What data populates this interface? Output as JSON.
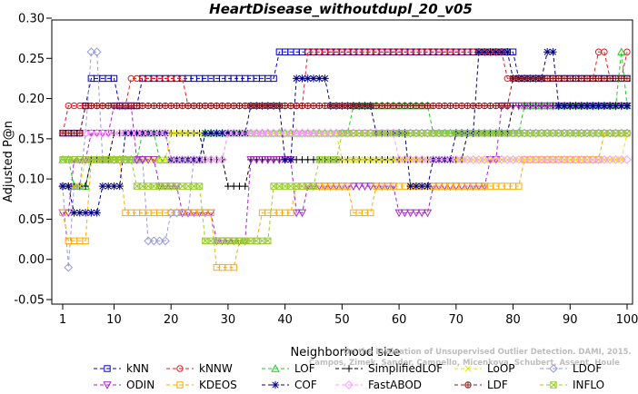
{
  "chart_data": {
    "type": "line",
    "title": "HeartDisease_withoutdupl_20_v05",
    "xlabel": "Neighborhood size",
    "ylabel": "Adjusted P@n",
    "xlim": [
      1,
      100
    ],
    "ylim": [
      -0.05,
      0.3
    ],
    "xticks": [
      "1",
      "10",
      "20",
      "30",
      "40",
      "50",
      "60",
      "70",
      "80",
      "90",
      "100"
    ],
    "yticks": [
      "-0.05",
      "0.00",
      "0.05",
      "0.10",
      "0.15",
      "0.20",
      "0.25",
      "0.30"
    ],
    "grid": false,
    "legend_position": "bottom",
    "series": [
      {
        "name": "kNN",
        "color": "#0000cd",
        "marker": "square",
        "keypoints": [
          [
            1,
            0.157
          ],
          [
            2,
            0.157
          ],
          [
            5,
            0.191
          ],
          [
            6,
            0.225
          ],
          [
            10,
            0.225
          ],
          [
            11,
            0.191
          ],
          [
            15,
            0.225
          ],
          [
            25,
            0.225
          ],
          [
            38,
            0.225
          ],
          [
            39,
            0.258
          ],
          [
            51,
            0.258
          ],
          [
            70,
            0.258
          ],
          [
            80,
            0.258
          ],
          [
            81,
            0.225
          ],
          [
            100,
            0.225
          ]
        ]
      },
      {
        "name": "kNNW",
        "color": "#e41a1c",
        "marker": "circle",
        "keypoints": [
          [
            1,
            0.157
          ],
          [
            2,
            0.191
          ],
          [
            8,
            0.191
          ],
          [
            10,
            0.191
          ],
          [
            13,
            0.225
          ],
          [
            22,
            0.225
          ],
          [
            23,
            0.191
          ],
          [
            42,
            0.191
          ],
          [
            44,
            0.258
          ],
          [
            70,
            0.258
          ],
          [
            78,
            0.258
          ],
          [
            79,
            0.225
          ],
          [
            94,
            0.225
          ],
          [
            95,
            0.258
          ],
          [
            96,
            0.258
          ],
          [
            97,
            0.225
          ],
          [
            99,
            0.225
          ],
          [
            100,
            0.258
          ]
        ]
      },
      {
        "name": "LOF",
        "color": "#22cc22",
        "marker": "triangle",
        "keypoints": [
          [
            1,
            0.124
          ],
          [
            3,
            0.091
          ],
          [
            6,
            0.124
          ],
          [
            12,
            0.124
          ],
          [
            15,
            0.157
          ],
          [
            18,
            0.124
          ],
          [
            22,
            0.124
          ],
          [
            26,
            0.157
          ],
          [
            42,
            0.157
          ],
          [
            48,
            0.157
          ],
          [
            52,
            0.191
          ],
          [
            62,
            0.191
          ],
          [
            66,
            0.157
          ],
          [
            80,
            0.157
          ],
          [
            82,
            0.191
          ],
          [
            98,
            0.191
          ],
          [
            99,
            0.258
          ],
          [
            100,
            0.191
          ]
        ]
      },
      {
        "name": "SimplifiedLOF",
        "color": "#000000",
        "marker": "plus",
        "keypoints": [
          [
            1,
            0.091
          ],
          [
            3,
            0.091
          ],
          [
            6,
            0.124
          ],
          [
            10,
            0.157
          ],
          [
            16,
            0.157
          ],
          [
            20,
            0.157
          ],
          [
            26,
            0.124
          ],
          [
            30,
            0.091
          ],
          [
            34,
            0.124
          ],
          [
            50,
            0.124
          ],
          [
            56,
            0.124
          ],
          [
            60,
            0.124
          ],
          [
            66,
            0.124
          ],
          [
            72,
            0.157
          ],
          [
            78,
            0.157
          ],
          [
            80,
            0.191
          ],
          [
            100,
            0.191
          ]
        ]
      },
      {
        "name": "LoOP",
        "color": "#e6e600",
        "marker": "x",
        "keypoints": [
          [
            1,
            0.091
          ],
          [
            5,
            0.124
          ],
          [
            10,
            0.124
          ],
          [
            20,
            0.157
          ],
          [
            30,
            0.157
          ],
          [
            40,
            0.157
          ],
          [
            50,
            0.124
          ],
          [
            60,
            0.124
          ],
          [
            70,
            0.124
          ],
          [
            80,
            0.124
          ],
          [
            90,
            0.124
          ],
          [
            100,
            0.157
          ]
        ]
      },
      {
        "name": "LDOF",
        "color": "#9999dd",
        "marker": "diamond",
        "keypoints": [
          [
            1,
            0.091
          ],
          [
            2,
            -0.01
          ],
          [
            3,
            0.091
          ],
          [
            5,
            0.157
          ],
          [
            6,
            0.258
          ],
          [
            8,
            0.124
          ],
          [
            12,
            0.124
          ],
          [
            16,
            0.023
          ],
          [
            20,
            0.058
          ],
          [
            24,
            0.124
          ],
          [
            30,
            0.157
          ],
          [
            40,
            0.157
          ],
          [
            50,
            0.157
          ],
          [
            60,
            0.157
          ],
          [
            70,
            0.157
          ],
          [
            80,
            0.157
          ],
          [
            90,
            0.157
          ],
          [
            100,
            0.157
          ]
        ]
      },
      {
        "name": "ODIN",
        "color": "#aa22cc",
        "marker": "triangle-down",
        "keypoints": [
          [
            1,
            0.058
          ],
          [
            2,
            0.058
          ],
          [
            3,
            0.124
          ],
          [
            6,
            0.157
          ],
          [
            10,
            0.191
          ],
          [
            14,
            0.124
          ],
          [
            18,
            0.091
          ],
          [
            22,
            0.058
          ],
          [
            26,
            0.058
          ],
          [
            28,
            0.023
          ],
          [
            32,
            0.023
          ],
          [
            34,
            0.124
          ],
          [
            38,
            0.124
          ],
          [
            40,
            0.124
          ],
          [
            42,
            0.058
          ],
          [
            44,
            0.091
          ],
          [
            50,
            0.091
          ],
          [
            56,
            0.091
          ],
          [
            60,
            0.058
          ],
          [
            64,
            0.058
          ],
          [
            66,
            0.091
          ],
          [
            70,
            0.091
          ],
          [
            72,
            0.091
          ],
          [
            76,
            0.124
          ],
          [
            78,
            0.191
          ],
          [
            90,
            0.191
          ],
          [
            100,
            0.191
          ]
        ]
      },
      {
        "name": "KDEOS",
        "color": "#ffaa00",
        "marker": "square",
        "keypoints": [
          [
            1,
            0.058
          ],
          [
            2,
            0.023
          ],
          [
            4,
            0.023
          ],
          [
            6,
            0.124
          ],
          [
            8,
            0.124
          ],
          [
            12,
            0.058
          ],
          [
            16,
            0.058
          ],
          [
            20,
            0.058
          ],
          [
            24,
            0.058
          ],
          [
            26,
            0.058
          ],
          [
            28,
            -0.01
          ],
          [
            30,
            -0.01
          ],
          [
            32,
            0.023
          ],
          [
            34,
            0.023
          ],
          [
            36,
            0.058
          ],
          [
            40,
            0.058
          ],
          [
            42,
            0.091
          ],
          [
            50,
            0.091
          ],
          [
            52,
            0.058
          ],
          [
            54,
            0.058
          ],
          [
            56,
            0.091
          ],
          [
            70,
            0.091
          ],
          [
            78,
            0.091
          ],
          [
            80,
            0.091
          ],
          [
            82,
            0.124
          ],
          [
            94,
            0.124
          ],
          [
            96,
            0.157
          ],
          [
            100,
            0.157
          ]
        ]
      },
      {
        "name": "COF",
        "color": "#000080",
        "marker": "asterisk",
        "keypoints": [
          [
            1,
            0.091
          ],
          [
            2,
            0.091
          ],
          [
            3,
            0.058
          ],
          [
            5,
            0.058
          ],
          [
            8,
            0.091
          ],
          [
            10,
            0.091
          ],
          [
            12,
            0.157
          ],
          [
            18,
            0.157
          ],
          [
            20,
            0.124
          ],
          [
            24,
            0.124
          ],
          [
            26,
            0.157
          ],
          [
            30,
            0.157
          ],
          [
            34,
            0.191
          ],
          [
            38,
            0.191
          ],
          [
            40,
            0.124
          ],
          [
            42,
            0.225
          ],
          [
            46,
            0.225
          ],
          [
            48,
            0.191
          ],
          [
            54,
            0.191
          ],
          [
            56,
            0.157
          ],
          [
            60,
            0.157
          ],
          [
            62,
            0.091
          ],
          [
            64,
            0.091
          ],
          [
            66,
            0.124
          ],
          [
            70,
            0.157
          ],
          [
            74,
            0.258
          ],
          [
            80,
            0.225
          ],
          [
            84,
            0.225
          ],
          [
            86,
            0.258
          ],
          [
            88,
            0.191
          ],
          [
            92,
            0.191
          ],
          [
            100,
            0.191
          ]
        ]
      },
      {
        "name": "FastABOD",
        "color": "#ff99ff",
        "marker": "diamond",
        "keypoints": [
          [
            1,
            0.157
          ],
          [
            5,
            0.157
          ],
          [
            10,
            0.157
          ],
          [
            20,
            0.124
          ],
          [
            30,
            0.157
          ],
          [
            40,
            0.157
          ],
          [
            50,
            0.157
          ],
          [
            60,
            0.124
          ],
          [
            70,
            0.124
          ],
          [
            80,
            0.124
          ],
          [
            90,
            0.124
          ],
          [
            100,
            0.124
          ]
        ]
      },
      {
        "name": "LDF",
        "color": "#8b1a1a",
        "marker": "circle-plus",
        "keypoints": [
          [
            1,
            0.157
          ],
          [
            5,
            0.191
          ],
          [
            10,
            0.191
          ],
          [
            20,
            0.191
          ],
          [
            30,
            0.191
          ],
          [
            40,
            0.191
          ],
          [
            50,
            0.191
          ],
          [
            60,
            0.191
          ],
          [
            70,
            0.191
          ],
          [
            80,
            0.225
          ],
          [
            90,
            0.225
          ],
          [
            100,
            0.225
          ]
        ]
      },
      {
        "name": "INFLO",
        "color": "#99cc33",
        "marker": "box-x",
        "keypoints": [
          [
            1,
            0.124
          ],
          [
            5,
            0.124
          ],
          [
            10,
            0.124
          ],
          [
            14,
            0.091
          ],
          [
            18,
            0.091
          ],
          [
            22,
            0.091
          ],
          [
            26,
            0.023
          ],
          [
            30,
            0.023
          ],
          [
            34,
            0.023
          ],
          [
            38,
            0.091
          ],
          [
            42,
            0.091
          ],
          [
            46,
            0.124
          ],
          [
            50,
            0.157
          ],
          [
            56,
            0.157
          ],
          [
            60,
            0.157
          ],
          [
            64,
            0.157
          ],
          [
            66,
            0.157
          ],
          [
            70,
            0.157
          ],
          [
            74,
            0.157
          ],
          [
            80,
            0.157
          ],
          [
            86,
            0.157
          ],
          [
            90,
            0.157
          ],
          [
            100,
            0.157
          ]
        ]
      }
    ]
  },
  "watermark": {
    "line1": "Campos, Zimek, Sander, Campello, Micenkova, Schubert, Assent, Houle",
    "line2": "On the Evaluation of Unsupervised Outlier Detection. DAMI, 2015."
  }
}
